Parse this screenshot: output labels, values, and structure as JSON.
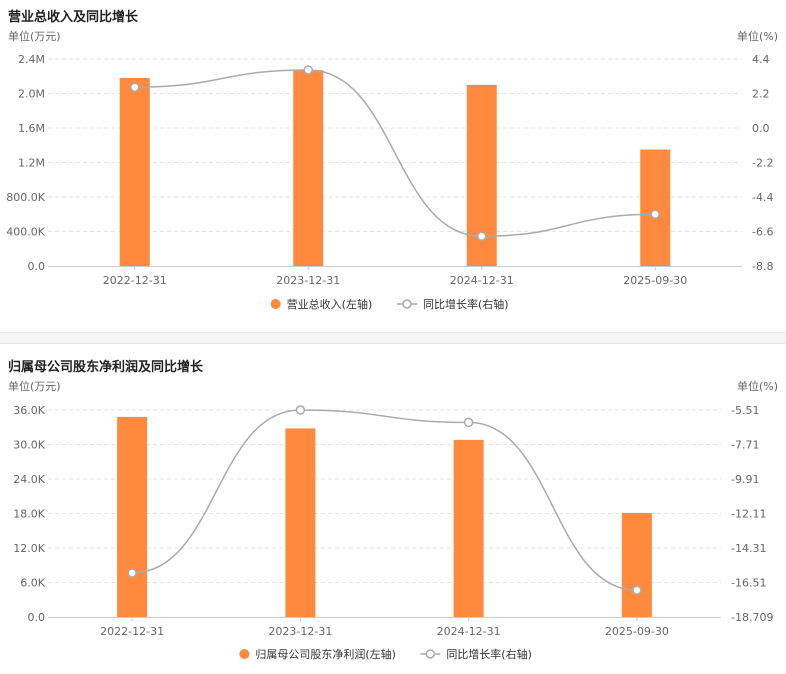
{
  "chart_data": [
    {
      "type": "bar",
      "title": "营业总收入及同比增长",
      "left_unit": "单位(万元)",
      "right_unit": "单位(%)",
      "categories": [
        "2022-12-31",
        "2023-12-31",
        "2024-12-31",
        "2025-09-30"
      ],
      "series": [
        {
          "name": "营业总收入(左轴)",
          "type": "bar",
          "axis": "left",
          "values": [
            2180000,
            2270000,
            2100000,
            1350000
          ]
        },
        {
          "name": "同比增长率(右轴)",
          "type": "line",
          "axis": "right",
          "values": [
            2.6,
            3.7,
            -6.9,
            -5.5
          ]
        }
      ],
      "left_ylim": [
        0,
        2400000
      ],
      "left_ticks": [
        0,
        400000,
        800000,
        1200000,
        1600000,
        2000000,
        2400000
      ],
      "left_tick_labels": [
        "0.0",
        "400.0K",
        "800.0K",
        "1.2M",
        "1.6M",
        "2.0M",
        "2.4M"
      ],
      "right_ylim": [
        -8.8,
        4.4
      ],
      "right_ticks": [
        -8.8,
        -6.6,
        -4.4,
        -2.2,
        0.0,
        2.2,
        4.4
      ],
      "right_tick_labels": [
        "-8.8",
        "-6.6",
        "-4.4",
        "-2.2",
        "0.0",
        "2.2",
        "4.4"
      ],
      "colors": {
        "bar": "#ff8a3d",
        "line": "#aaaaaa",
        "grid": "#e5e5e5",
        "axis": "#cccccc",
        "text": "#666666"
      },
      "legend_position": "bottom-center",
      "grid": true
    },
    {
      "type": "bar",
      "title": "归属母公司股东净利润及同比增长",
      "left_unit": "单位(万元)",
      "right_unit": "单位(%)",
      "categories": [
        "2022-12-31",
        "2023-12-31",
        "2024-12-31",
        "2025-09-30"
      ],
      "series": [
        {
          "name": "归属母公司股东净利润(左轴)",
          "type": "bar",
          "axis": "left",
          "values": [
            34800,
            32800,
            30800,
            18100
          ]
        },
        {
          "name": "同比增长率(右轴)",
          "type": "line",
          "axis": "right",
          "values": [
            -15.9,
            -5.51,
            -6.3,
            -17.0
          ]
        }
      ],
      "left_ylim": [
        0,
        36000
      ],
      "left_ticks": [
        0,
        6000,
        12000,
        18000,
        24000,
        30000,
        36000
      ],
      "left_tick_labels": [
        "0.0",
        "6.0K",
        "12.0K",
        "18.0K",
        "24.0K",
        "30.0K",
        "36.0K"
      ],
      "right_ylim": [
        -18.709,
        -5.51
      ],
      "right_ticks": [
        -18.709,
        -16.51,
        -14.31,
        -12.11,
        -9.91,
        -7.71,
        -5.51
      ],
      "right_tick_labels": [
        "-18.709",
        "-16.51",
        "-14.31",
        "-12.11",
        "-9.91",
        "-7.71",
        "-5.51"
      ],
      "colors": {
        "bar": "#ff8a3d",
        "line": "#aaaaaa",
        "grid": "#e5e5e5",
        "axis": "#cccccc",
        "text": "#666666"
      },
      "legend_position": "bottom-center",
      "grid": true
    }
  ]
}
